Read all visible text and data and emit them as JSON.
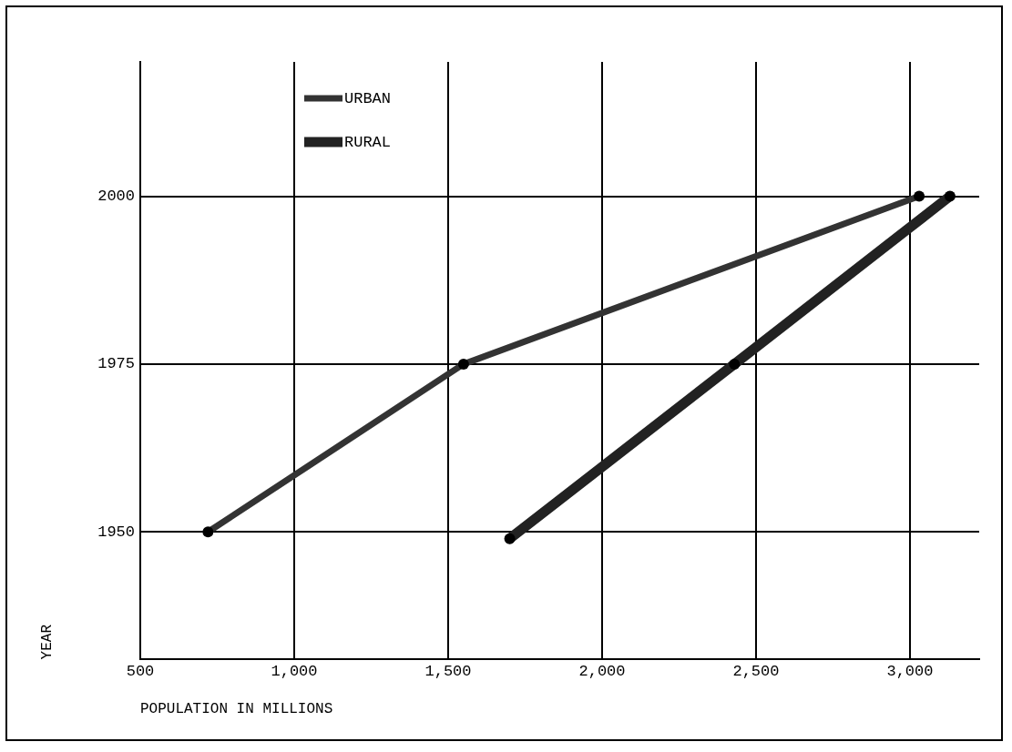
{
  "chart_data": {
    "type": "line",
    "xlabel": "POPULATION IN MILLIONS",
    "ylabel": "YEAR",
    "xlim": [
      500,
      3225
    ],
    "xticks": [
      {
        "value": 500,
        "label": "500"
      },
      {
        "value": 1000,
        "label": "1,000"
      },
      {
        "value": 1500,
        "label": "1,500"
      },
      {
        "value": 2000,
        "label": "2,000"
      },
      {
        "value": 2500,
        "label": "2,500"
      },
      {
        "value": 3000,
        "label": "3,000"
      }
    ],
    "ylim": [
      1931,
      2020
    ],
    "yticks": [
      1950,
      1975,
      2000
    ],
    "grid": true,
    "legend": "top left",
    "marker": "circle",
    "line_style": "solid",
    "series": [
      {
        "name": "URBAN",
        "color": "#333333",
        "x": [
          720,
          1550,
          3030
        ],
        "values": [
          1950,
          1975,
          2000
        ]
      },
      {
        "name": "RURAL",
        "color": "#222222",
        "x": [
          1700,
          2430,
          3130
        ],
        "values": [
          1949,
          1975,
          2000
        ]
      }
    ]
  }
}
